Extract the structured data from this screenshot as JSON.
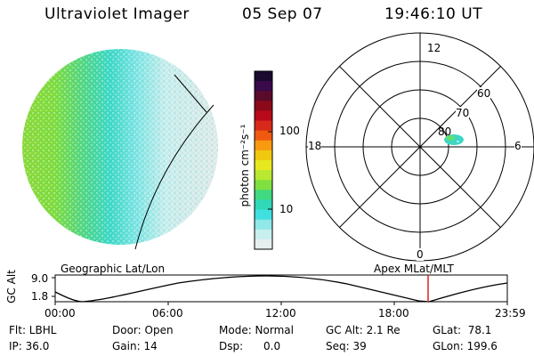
{
  "header": {
    "instrument": "Ultraviolet Imager",
    "date": "05 Sep 07",
    "time": "19:46:10 UT"
  },
  "colorbar": {
    "unit_label": "photon cm⁻²s⁻¹",
    "ticks": [
      "100",
      "10"
    ],
    "colors": [
      "#1a0a2e",
      "#3a0a4a",
      "#5a0a2a",
      "#8a0a1a",
      "#b80a1a",
      "#d82a1a",
      "#f05a10",
      "#f89a10",
      "#f0c810",
      "#e8e820",
      "#b8e830",
      "#80e040",
      "#40d880",
      "#30d8b8",
      "#40e0e0",
      "#90e8e8",
      "#c8eeee",
      "#e6efee"
    ]
  },
  "polar": {
    "mlt_labels": {
      "top": "12",
      "left": "18",
      "right": "6",
      "bottom": "0"
    },
    "lat_labels": [
      "60",
      "70",
      "80"
    ]
  },
  "timeline": {
    "left_title": "Geographic Lat/Lon",
    "right_title": "Apex  MLat/MLT",
    "axis_label": "GC Alt",
    "y_ticks": [
      "9.0",
      "1.8"
    ],
    "x_ticks": [
      "00:00",
      "06:00",
      "12:00",
      "18:00",
      "23:59"
    ],
    "marker_color": "#e02020"
  },
  "status": {
    "flt": "Flt: LBHL",
    "ip": "IP: 36.0",
    "door": "Door: Open",
    "gain": "Gain: 14",
    "mode": "Mode: Normal",
    "dsp": "Dsp:      0.0",
    "gc_alt": "GC Alt: 2.1 Re",
    "seq": "Seq: 39",
    "glat": "GLat:  78.1",
    "glon": "GLon: 199.6"
  }
}
